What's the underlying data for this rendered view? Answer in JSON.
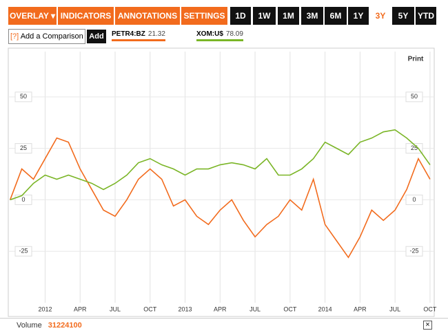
{
  "toolbar": {
    "menus": [
      "OVERLAY ▾",
      "INDICATORS ▾",
      "ANNOTATIONS ▾",
      "SETTINGS ▾"
    ],
    "ranges": [
      "1D",
      "1W",
      "1M",
      "3M",
      "6M",
      "1Y",
      "3Y",
      "5Y",
      "YTD"
    ],
    "active_range": 6
  },
  "comparison": {
    "help": "[?]",
    "placeholder": "Add a Comparison",
    "button": "Add"
  },
  "print": "Print",
  "footer": {
    "label": "Volume",
    "value": "31224100",
    "close": "×"
  },
  "chart_data": {
    "type": "line",
    "x": [
      -3,
      -2,
      -1,
      0,
      1,
      2,
      3,
      4,
      5,
      6,
      7,
      8,
      9,
      10,
      11,
      12,
      13,
      14,
      15,
      16,
      17,
      18,
      19,
      20,
      21,
      22,
      23,
      24,
      25,
      26,
      27,
      28,
      29,
      30,
      31,
      32,
      33
    ],
    "series": [
      {
        "name": "PETR4:BZ",
        "last": 21.32,
        "color": "#f26b1d",
        "values": [
          0,
          15,
          10,
          20,
          30,
          28,
          15,
          5,
          -5,
          -8,
          0,
          10,
          15,
          10,
          -3,
          0,
          -8,
          -12,
          -5,
          0,
          -10,
          -18,
          -12,
          -8,
          0,
          -5,
          10,
          -12,
          -20,
          -28,
          -18,
          -5,
          -10,
          -5,
          5,
          20,
          10
        ]
      },
      {
        "name": "XOM:U$",
        "last": 78.09,
        "color": "#7ab526",
        "values": [
          0,
          2,
          8,
          12,
          10,
          12,
          10,
          8,
          5,
          8,
          12,
          18,
          20,
          17,
          15,
          12,
          15,
          15,
          17,
          18,
          17,
          15,
          20,
          12,
          12,
          15,
          20,
          28,
          25,
          22,
          28,
          30,
          33,
          34,
          30,
          25,
          17
        ]
      }
    ],
    "xlim": [
      -3.1,
      33.3
    ],
    "xticks": [
      {
        "value": 0,
        "label": "2012"
      },
      {
        "value": 3,
        "label": "APR"
      },
      {
        "value": 6,
        "label": "JUL"
      },
      {
        "value": 9,
        "label": "OCT"
      },
      {
        "value": 12,
        "label": "2013"
      },
      {
        "value": 15,
        "label": "APR"
      },
      {
        "value": 18,
        "label": "JUL"
      },
      {
        "value": 21,
        "label": "OCT"
      },
      {
        "value": 24,
        "label": "2014"
      },
      {
        "value": 27,
        "label": "APR"
      },
      {
        "value": 30,
        "label": "JUL"
      },
      {
        "value": 33,
        "label": "OCT"
      }
    ],
    "ylim": [
      -50,
      72
    ],
    "yticks": [
      -25,
      0,
      25,
      50
    ],
    "grid": true
  }
}
